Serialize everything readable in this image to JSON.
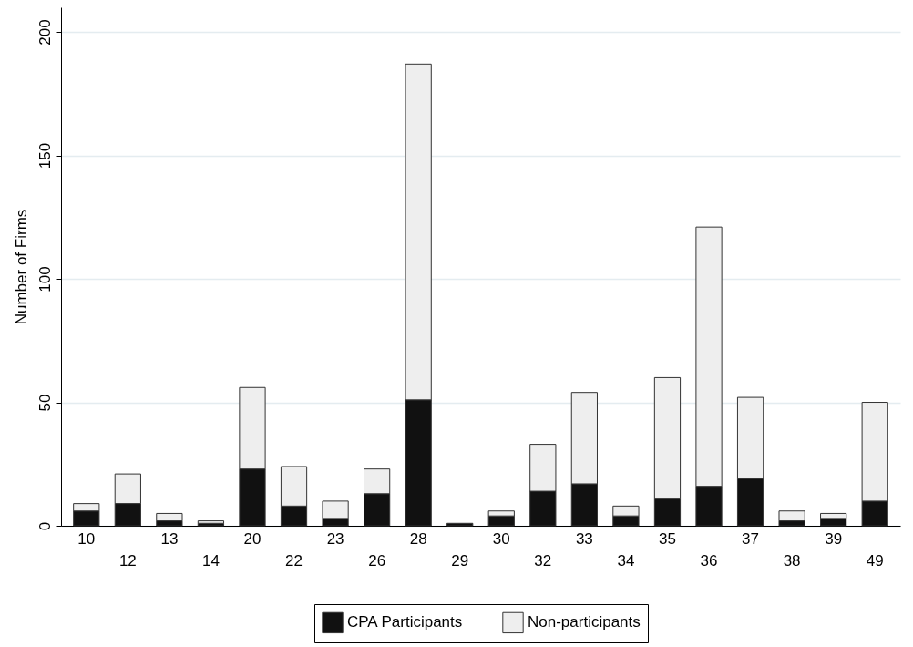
{
  "chart_data": {
    "type": "bar",
    "stacked": true,
    "ylabel": "Number of Firms",
    "categories": [
      "10",
      "12",
      "13",
      "14",
      "20",
      "22",
      "23",
      "26",
      "28",
      "29",
      "30",
      "32",
      "33",
      "34",
      "35",
      "36",
      "37",
      "38",
      "39",
      "49"
    ],
    "series": [
      {
        "name": "CPA Participants",
        "color": "#111111",
        "values": [
          6,
          9,
          2,
          1,
          23,
          8,
          3,
          13,
          51,
          1,
          4,
          14,
          17,
          4,
          11,
          16,
          19,
          2,
          3,
          10
        ]
      },
      {
        "name": "Non-participants",
        "color": "#eeeeee",
        "values": [
          3,
          12,
          3,
          1,
          33,
          16,
          7,
          10,
          136,
          0,
          2,
          19,
          37,
          4,
          49,
          105,
          33,
          4,
          2,
          40
        ]
      }
    ],
    "ylim": [
      0,
      210
    ],
    "yticks": [
      0,
      50,
      100,
      150,
      200
    ],
    "grid": "y",
    "legend": "bottom"
  }
}
